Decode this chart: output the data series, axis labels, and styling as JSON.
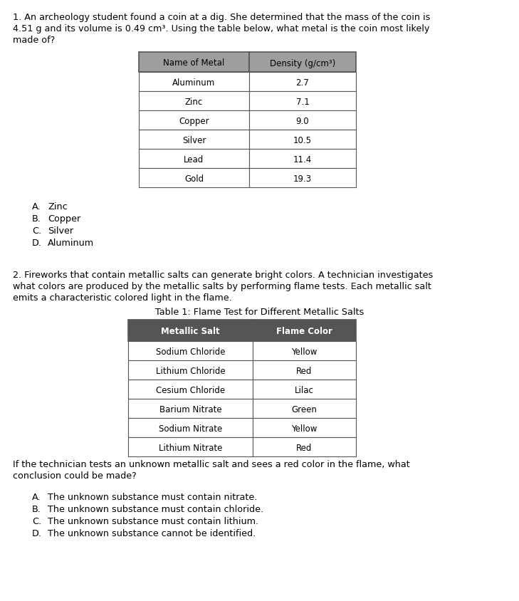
{
  "bg_color": "#ffffff",
  "q1_text_lines": [
    "1. An archeology student found a coin at a dig. She determined that the mass of the coin is",
    "4.51 g and its volume is 0.49 cm³. Using the table below, what metal is the coin most likely",
    "made of?"
  ],
  "table1_header": [
    "Name of Metal",
    "Density (g/cm³)"
  ],
  "table1_rows": [
    [
      "Aluminum",
      "2.7"
    ],
    [
      "Zinc",
      "7.1"
    ],
    [
      "Copper",
      "9.0"
    ],
    [
      "Silver",
      "10.5"
    ],
    [
      "Lead",
      "11.4"
    ],
    [
      "Gold",
      "19.3"
    ]
  ],
  "table1_header_bg": "#9e9e9e",
  "table1_header_fg": "#000000",
  "table1_row_bg": "#ffffff",
  "table1_border": "#555555",
  "q1_choices": [
    [
      "A.",
      "Zinc"
    ],
    [
      "B.",
      "Copper"
    ],
    [
      "C.",
      "Silver"
    ],
    [
      "D.",
      "Aluminum"
    ]
  ],
  "q2_text_lines": [
    "2. Fireworks that contain metallic salts can generate bright colors. A technician investigates",
    "what colors are produced by the metallic salts by performing flame tests. Each metallic salt",
    "emits a characteristic colored light in the flame."
  ],
  "table2_title": "Table 1: Flame Test for Different Metallic Salts",
  "table2_header": [
    "Metallic Salt",
    "Flame Color"
  ],
  "table2_rows": [
    [
      "Sodium Chloride",
      "Yellow"
    ],
    [
      "Lithium Chloride",
      "Red"
    ],
    [
      "Cesium Chloride",
      "Lilac"
    ],
    [
      "Barium Nitrate",
      "Green"
    ],
    [
      "Sodium Nitrate",
      "Yellow"
    ],
    [
      "Lithium Nitrate",
      "Red"
    ]
  ],
  "table2_header_bg": "#555555",
  "table2_header_fg": "#ffffff",
  "table2_row_bg": "#ffffff",
  "table2_border": "#555555",
  "q2_follow_lines": [
    "If the technician tests an unknown metallic salt and sees a red color in the flame, what",
    "conclusion could be made?"
  ],
  "q2_choices": [
    [
      "A.",
      "The unknown substance must contain nitrate."
    ],
    [
      "B.",
      "The unknown substance must contain chloride."
    ],
    [
      "C.",
      "The unknown substance must contain lithium."
    ],
    [
      "D.",
      "The unknown substance cannot be identified."
    ]
  ],
  "font_size_body": 9.2,
  "font_size_table": 8.5,
  "font_size_choices": 9.2,
  "font_size_title": 9.2
}
